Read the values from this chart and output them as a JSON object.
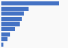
{
  "values": [
    5500,
    2600,
    2100,
    1950,
    1750,
    1300,
    850,
    550,
    180
  ],
  "bar_color": "#4472c4",
  "background_color": "#f9f9f9",
  "xlim": [
    0,
    6200
  ],
  "bar_height": 0.82,
  "figsize": [
    1.0,
    0.71
  ],
  "dpi": 100
}
